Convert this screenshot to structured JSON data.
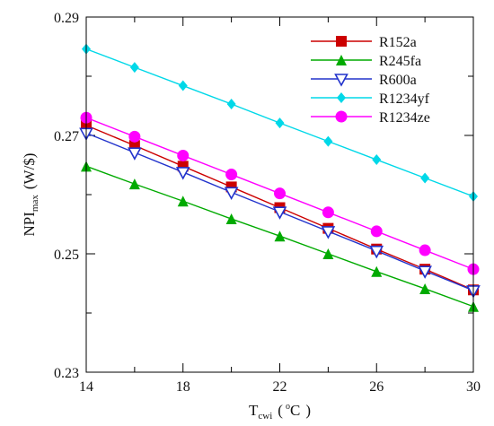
{
  "chart_data": {
    "type": "line",
    "title": "",
    "xlabel": {
      "main": "T",
      "sub": "cwi",
      "unit_open": "(",
      "unit_deg": "o",
      "unit": "C",
      "unit_close": ")"
    },
    "ylabel": {
      "main": "NPI",
      "sub": "max",
      "unit": "(W/$)"
    },
    "xlim": [
      14,
      30
    ],
    "ylim": [
      0.23,
      0.29
    ],
    "x_ticks": [
      "14",
      "18",
      "22",
      "26",
      "30"
    ],
    "y_ticks": [
      "0.23",
      "0.25",
      "0.27",
      "0.29"
    ],
    "x": [
      14,
      16,
      18,
      20,
      22,
      24,
      26,
      28,
      30
    ],
    "grid": false,
    "legend_position": "top-right",
    "series": [
      {
        "name": "R152a",
        "color": "#cc0000",
        "marker": "square",
        "values": [
          0.2717,
          0.2683,
          0.2648,
          0.2613,
          0.2578,
          0.2543,
          0.2508,
          0.2474,
          0.2439
        ]
      },
      {
        "name": "R245fa",
        "color": "#00aa00",
        "marker": "triangle-up",
        "values": [
          0.2648,
          0.2618,
          0.2589,
          0.2559,
          0.253,
          0.25,
          0.247,
          0.2441,
          0.2411
        ]
      },
      {
        "name": "R600a",
        "color": "#2233cc",
        "marker": "triangle-down-open",
        "values": [
          0.2704,
          0.2671,
          0.2638,
          0.2604,
          0.2571,
          0.2538,
          0.2505,
          0.2471,
          0.2438
        ]
      },
      {
        "name": "R1234yf",
        "color": "#00d8e8",
        "marker": "diamond",
        "values": [
          0.2846,
          0.2815,
          0.2784,
          0.2753,
          0.2721,
          0.269,
          0.2659,
          0.2628,
          0.2597
        ]
      },
      {
        "name": "R1234ze",
        "color": "#ff00ff",
        "marker": "circle",
        "values": [
          0.273,
          0.2698,
          0.2666,
          0.2634,
          0.2602,
          0.257,
          0.2538,
          0.2506,
          0.2474
        ]
      }
    ]
  }
}
